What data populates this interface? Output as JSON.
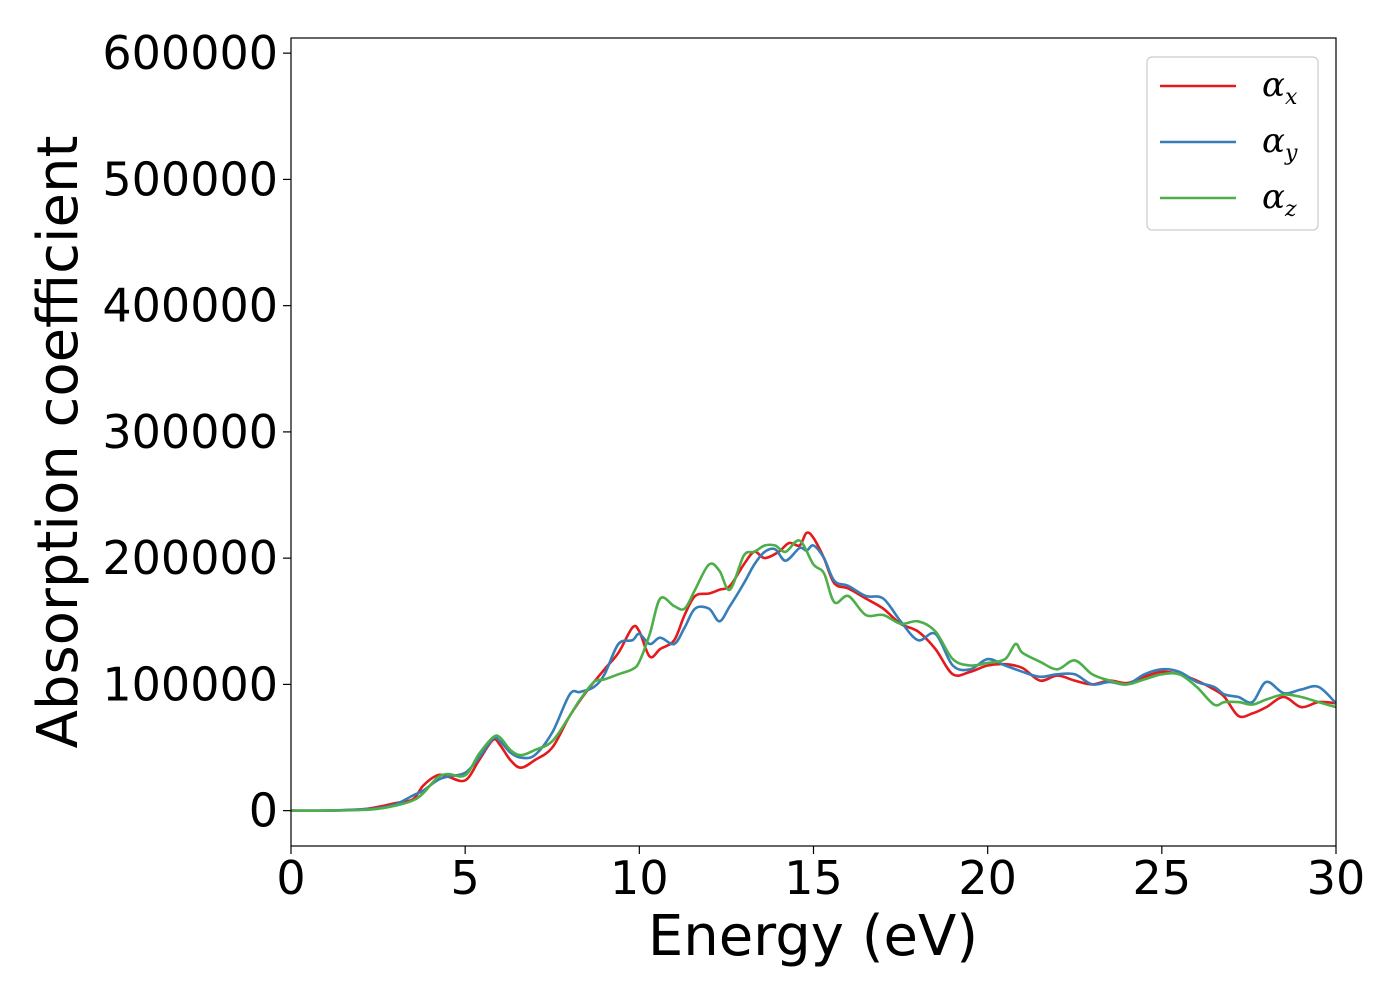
{
  "chart_data": {
    "type": "line",
    "xlabel": "Energy (eV)",
    "ylabel": "Absorption coefficient",
    "xlim": [
      0,
      30
    ],
    "ylim": [
      -28000,
      612000
    ],
    "xticks": [
      0,
      5,
      10,
      15,
      20,
      25,
      30
    ],
    "yticks": [
      0,
      100000,
      200000,
      300000,
      400000,
      500000,
      600000
    ],
    "grid": false,
    "legend_position": "top-right",
    "series": [
      {
        "name": "α",
        "subscript": "x",
        "color": "#e41a1c",
        "x": [
          0,
          1,
          2,
          2.5,
          3,
          3.5,
          3.8,
          4.2,
          4.5,
          5.0,
          5.4,
          5.8,
          6.0,
          6.3,
          6.6,
          7.0,
          7.5,
          8.0,
          8.5,
          9.0,
          9.4,
          9.8,
          10.0,
          10.3,
          10.6,
          11.0,
          11.3,
          11.6,
          12.0,
          12.3,
          12.6,
          13.0,
          13.3,
          13.6,
          14.0,
          14.3,
          14.6,
          14.8,
          15.0,
          15.3,
          15.6,
          16.0,
          16.5,
          17.0,
          17.5,
          18.0,
          18.5,
          19.0,
          19.5,
          20.0,
          20.5,
          21.0,
          21.5,
          22.0,
          22.5,
          23.0,
          23.5,
          24.0,
          24.5,
          25.0,
          25.5,
          26.0,
          26.5,
          26.8,
          27.2,
          27.6,
          28.0,
          28.5,
          29.0,
          29.5,
          30.0
        ],
        "y": [
          0,
          0,
          1000,
          3000,
          6000,
          9000,
          20000,
          28000,
          27000,
          24000,
          40000,
          56000,
          52000,
          40000,
          34000,
          40000,
          50000,
          75000,
          95000,
          112000,
          125000,
          145000,
          142000,
          122000,
          128000,
          135000,
          155000,
          170000,
          172000,
          175000,
          178000,
          195000,
          205000,
          200000,
          205000,
          212000,
          210000,
          220000,
          216000,
          200000,
          180000,
          176000,
          168000,
          160000,
          148000,
          142000,
          128000,
          108000,
          110000,
          115000,
          116000,
          113000,
          103000,
          107000,
          103000,
          100000,
          103000,
          101000,
          106000,
          110000,
          108000,
          103000,
          96000,
          90000,
          75000,
          77000,
          82000,
          90000,
          82000,
          86000,
          85000
        ]
      },
      {
        "name": "α",
        "subscript": "y",
        "color": "#377eb8",
        "x": [
          0,
          1,
          2,
          2.5,
          3,
          3.5,
          3.8,
          4.2,
          4.5,
          5.0,
          5.4,
          5.8,
          6.0,
          6.3,
          6.6,
          7.0,
          7.5,
          8.0,
          8.3,
          8.7,
          9.0,
          9.4,
          9.8,
          10.0,
          10.3,
          10.6,
          11.0,
          11.3,
          11.6,
          12.0,
          12.3,
          12.6,
          13.0,
          13.3,
          13.6,
          13.9,
          14.2,
          14.6,
          14.8,
          15.0,
          15.3,
          15.6,
          16.0,
          16.5,
          17.0,
          17.5,
          18.0,
          18.5,
          19.0,
          19.5,
          20.0,
          20.5,
          21.0,
          21.5,
          22.0,
          22.5,
          23.0,
          23.5,
          24.0,
          24.5,
          25.0,
          25.5,
          26.0,
          26.5,
          26.8,
          27.2,
          27.6,
          28.0,
          28.5,
          29.0,
          29.5,
          30.0
        ],
        "y": [
          0,
          0,
          1000,
          2000,
          5000,
          12000,
          16000,
          24000,
          27000,
          30000,
          42000,
          57000,
          55000,
          46000,
          42000,
          44000,
          62000,
          92000,
          94000,
          98000,
          108000,
          132000,
          135000,
          140000,
          132000,
          137000,
          132000,
          145000,
          160000,
          160000,
          150000,
          162000,
          180000,
          195000,
          205000,
          207000,
          198000,
          208000,
          206000,
          210000,
          200000,
          182000,
          178000,
          170000,
          168000,
          150000,
          135000,
          140000,
          115000,
          112000,
          120000,
          115000,
          110000,
          106000,
          108000,
          108000,
          100000,
          102000,
          100000,
          108000,
          112000,
          110000,
          102000,
          98000,
          92000,
          90000,
          86000,
          102000,
          93000,
          96000,
          98000,
          85000
        ]
      },
      {
        "name": "α",
        "subscript": "z",
        "color": "#4daf4a",
        "x": [
          0,
          1,
          2,
          2.5,
          3,
          3.5,
          3.8,
          4.2,
          4.5,
          5.0,
          5.4,
          5.8,
          6.0,
          6.3,
          6.6,
          7.0,
          7.5,
          8.0,
          8.3,
          8.7,
          9.0,
          9.4,
          9.8,
          10.0,
          10.3,
          10.6,
          11.0,
          11.3,
          11.6,
          12.0,
          12.3,
          12.6,
          13.0,
          13.3,
          13.6,
          13.9,
          14.2,
          14.6,
          15.0,
          15.3,
          15.6,
          16.0,
          16.5,
          17.0,
          17.5,
          18.0,
          18.5,
          19.0,
          19.5,
          20.0,
          20.5,
          20.8,
          21.0,
          21.5,
          22.0,
          22.5,
          23.0,
          23.5,
          24.0,
          24.5,
          25.0,
          25.5,
          26.0,
          26.5,
          26.8,
          27.2,
          27.6,
          28.0,
          28.5,
          29.0,
          29.5,
          30.0
        ],
        "y": [
          0,
          0,
          500,
          1500,
          4000,
          8000,
          14000,
          26000,
          29000,
          28000,
          45000,
          58000,
          58000,
          48000,
          44000,
          48000,
          55000,
          75000,
          88000,
          102000,
          104000,
          108000,
          112000,
          118000,
          140000,
          168000,
          162000,
          160000,
          175000,
          195000,
          190000,
          175000,
          202000,
          205000,
          210000,
          210000,
          205000,
          214000,
          195000,
          188000,
          165000,
          170000,
          155000,
          155000,
          148000,
          150000,
          142000,
          120000,
          115000,
          117000,
          120000,
          132000,
          125000,
          118000,
          112000,
          119000,
          108000,
          103000,
          100000,
          104000,
          108000,
          108000,
          98000,
          84000,
          86000,
          86000,
          84000,
          88000,
          92000,
          90000,
          86000,
          82000
        ]
      }
    ]
  }
}
